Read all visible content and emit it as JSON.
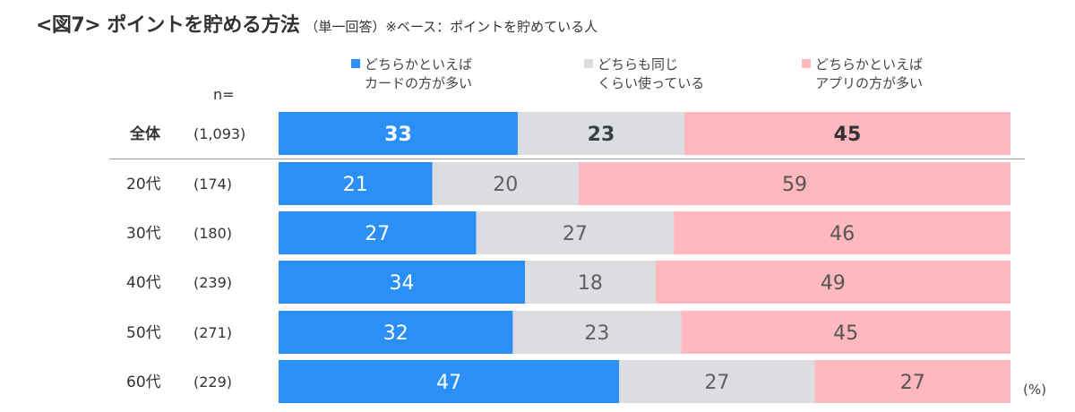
{
  "title": {
    "main": "<図7> ポイントを貯める方法",
    "sub": "（単一回答）※ベース：ポイントを貯めている人"
  },
  "n_header": "n=",
  "unit": "(%)",
  "colors": {
    "card": "#2a8ff7",
    "both": "#dcdde1",
    "app": "#ffb8bd",
    "card_text": "#ffffff",
    "both_text": "#606060",
    "app_text": "#555555",
    "total_both_text": "#3a3f4a",
    "total_app_text": "#333333"
  },
  "chart_data": {
    "type": "bar",
    "orientation": "horizontal",
    "stacked": true,
    "grid": false,
    "legend_position": "top",
    "categories": [
      "全体",
      "20代",
      "30代",
      "40代",
      "50代",
      "60代"
    ],
    "sample_sizes": [
      "(1,093)",
      "(174)",
      "(180)",
      "(239)",
      "(271)",
      "(229)"
    ],
    "series": [
      {
        "name": "どちらかといえば カードの方が多い",
        "line1": "どちらかといえば",
        "line2": "カードの方が多い",
        "values": [
          33,
          21,
          27,
          34,
          32,
          47
        ]
      },
      {
        "name": "どちらも同じ くらい使っている",
        "line1": "どちらも同じ",
        "line2": "くらい使っている",
        "values": [
          23,
          20,
          27,
          18,
          23,
          27
        ]
      },
      {
        "name": "どちらかといえば アプリの方が多い",
        "line1": "どちらかといえば",
        "line2": "アプリの方が多い",
        "values": [
          45,
          59,
          46,
          49,
          45,
          27
        ]
      }
    ]
  }
}
